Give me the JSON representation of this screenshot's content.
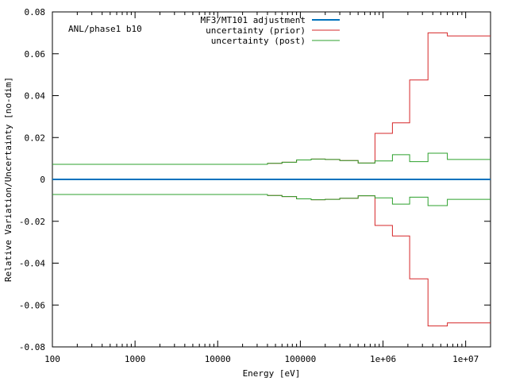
{
  "chart_data": {
    "type": "line",
    "step": true,
    "annotation": "ANL/phase1 b10",
    "xlabel": "Energy [eV]",
    "ylabel": "Relative Variation/Uncertainty [no-dim]",
    "xscale": "log",
    "xlim": [
      100,
      20000000
    ],
    "ylim": [
      -0.08,
      0.08
    ],
    "grid": false,
    "legend_position": "top",
    "x_ticks": [
      {
        "value": 100,
        "label": "100"
      },
      {
        "value": 1000,
        "label": "1000"
      },
      {
        "value": 10000,
        "label": "10000"
      },
      {
        "value": 100000,
        "label": "100000"
      },
      {
        "value": 1000000,
        "label": "1e+06"
      },
      {
        "value": 10000000,
        "label": "1e+07"
      }
    ],
    "y_ticks": [
      {
        "value": -0.08,
        "label": "-0.08"
      },
      {
        "value": -0.06,
        "label": "-0.06"
      },
      {
        "value": -0.04,
        "label": "-0.04"
      },
      {
        "value": -0.02,
        "label": "-0.02"
      },
      {
        "value": 0,
        "label": "0"
      },
      {
        "value": 0.02,
        "label": "0.02"
      },
      {
        "value": 0.04,
        "label": "0.04"
      },
      {
        "value": 0.06,
        "label": "0.06"
      },
      {
        "value": 0.08,
        "label": "0.08"
      }
    ],
    "bin_edges": [
      100,
      40000,
      60000,
      90000,
      135000,
      200000,
      300000,
      500000,
      800000,
      1300000,
      2100000,
      3500000,
      6000000,
      10000000,
      20000000
    ],
    "series": [
      {
        "name": "MF3/MT101 adjustment",
        "color": "#0072bd",
        "values": [
          0,
          0,
          0,
          0,
          0,
          0,
          0,
          0,
          0,
          0,
          0,
          0,
          0,
          0
        ]
      },
      {
        "name": "uncertainty (prior)",
        "color": "#d62728",
        "symmetric": true,
        "values": [
          0.0072,
          0.0077,
          0.0082,
          0.0093,
          0.0097,
          0.0095,
          0.009,
          0.0078,
          0.022,
          0.027,
          0.0475,
          0.07,
          0.0685,
          0.0685
        ]
      },
      {
        "name": "uncertainty (post)",
        "color": "#2ca02c",
        "symmetric": true,
        "values": [
          0.0072,
          0.0077,
          0.0082,
          0.0093,
          0.0097,
          0.0095,
          0.009,
          0.0078,
          0.0088,
          0.0118,
          0.0085,
          0.0125,
          0.0095,
          0.0095
        ]
      }
    ]
  }
}
